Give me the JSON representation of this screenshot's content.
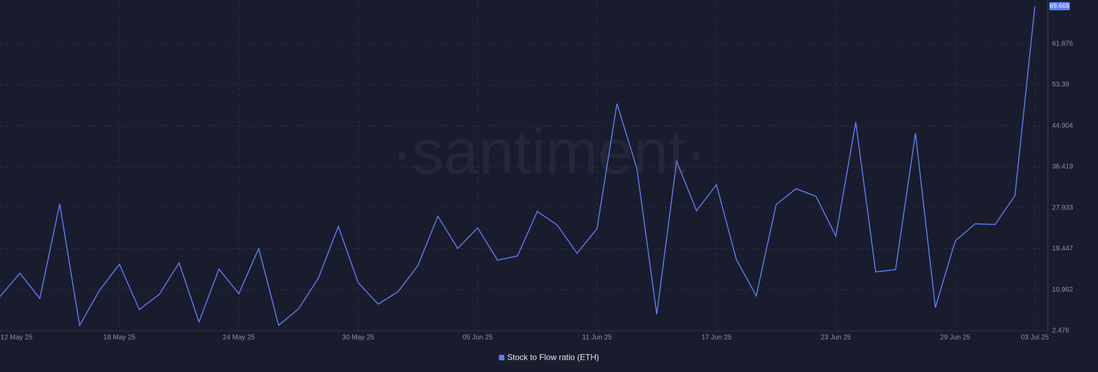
{
  "chart_data": {
    "type": "line",
    "watermark": "·santiment·",
    "categories": [
      "12 May 25",
      null,
      null,
      null,
      null,
      null,
      "18 May 25",
      null,
      null,
      null,
      null,
      null,
      "24 May 25",
      null,
      null,
      null,
      null,
      null,
      "30 May 25",
      null,
      null,
      null,
      null,
      null,
      "05 Jun 25",
      null,
      null,
      null,
      null,
      null,
      "11 Jun 25",
      null,
      null,
      null,
      null,
      null,
      "17 Jun 25",
      null,
      null,
      null,
      null,
      null,
      "23 Jun 25",
      null,
      null,
      null,
      null,
      null,
      "29 Jun 25",
      null,
      null,
      null,
      "03 Jul 25"
    ],
    "series": [
      {
        "name": "Stock to Flow ratio (ETH)",
        "color": "#5b7bf0",
        "values": [
          9.58,
          14.41,
          9.15,
          28.75,
          3.61,
          10.86,
          16.25,
          6.88,
          10.0,
          16.54,
          4.32,
          15.26,
          10.15,
          19.52,
          3.61,
          7.02,
          13.41,
          24.07,
          12.42,
          8.02,
          10.57,
          15.97,
          26.2,
          19.52,
          23.78,
          17.11,
          17.96,
          27.19,
          24.35,
          18.53,
          23.64,
          49.49,
          36.14,
          5.88,
          37.56,
          27.33,
          32.73,
          17.25,
          9.72,
          28.61,
          31.88,
          30.32,
          22.08,
          45.66,
          14.69,
          15.12,
          43.38,
          7.31,
          21.08,
          24.63,
          24.49,
          30.46,
          69.665
        ]
      }
    ],
    "ylim": [
      2.476,
      70.95
    ],
    "yticks": [
      2.476,
      10.962,
      19.447,
      27.933,
      36.419,
      44.904,
      53.39,
      61.876
    ],
    "grid": true,
    "legend": "bottom"
  }
}
